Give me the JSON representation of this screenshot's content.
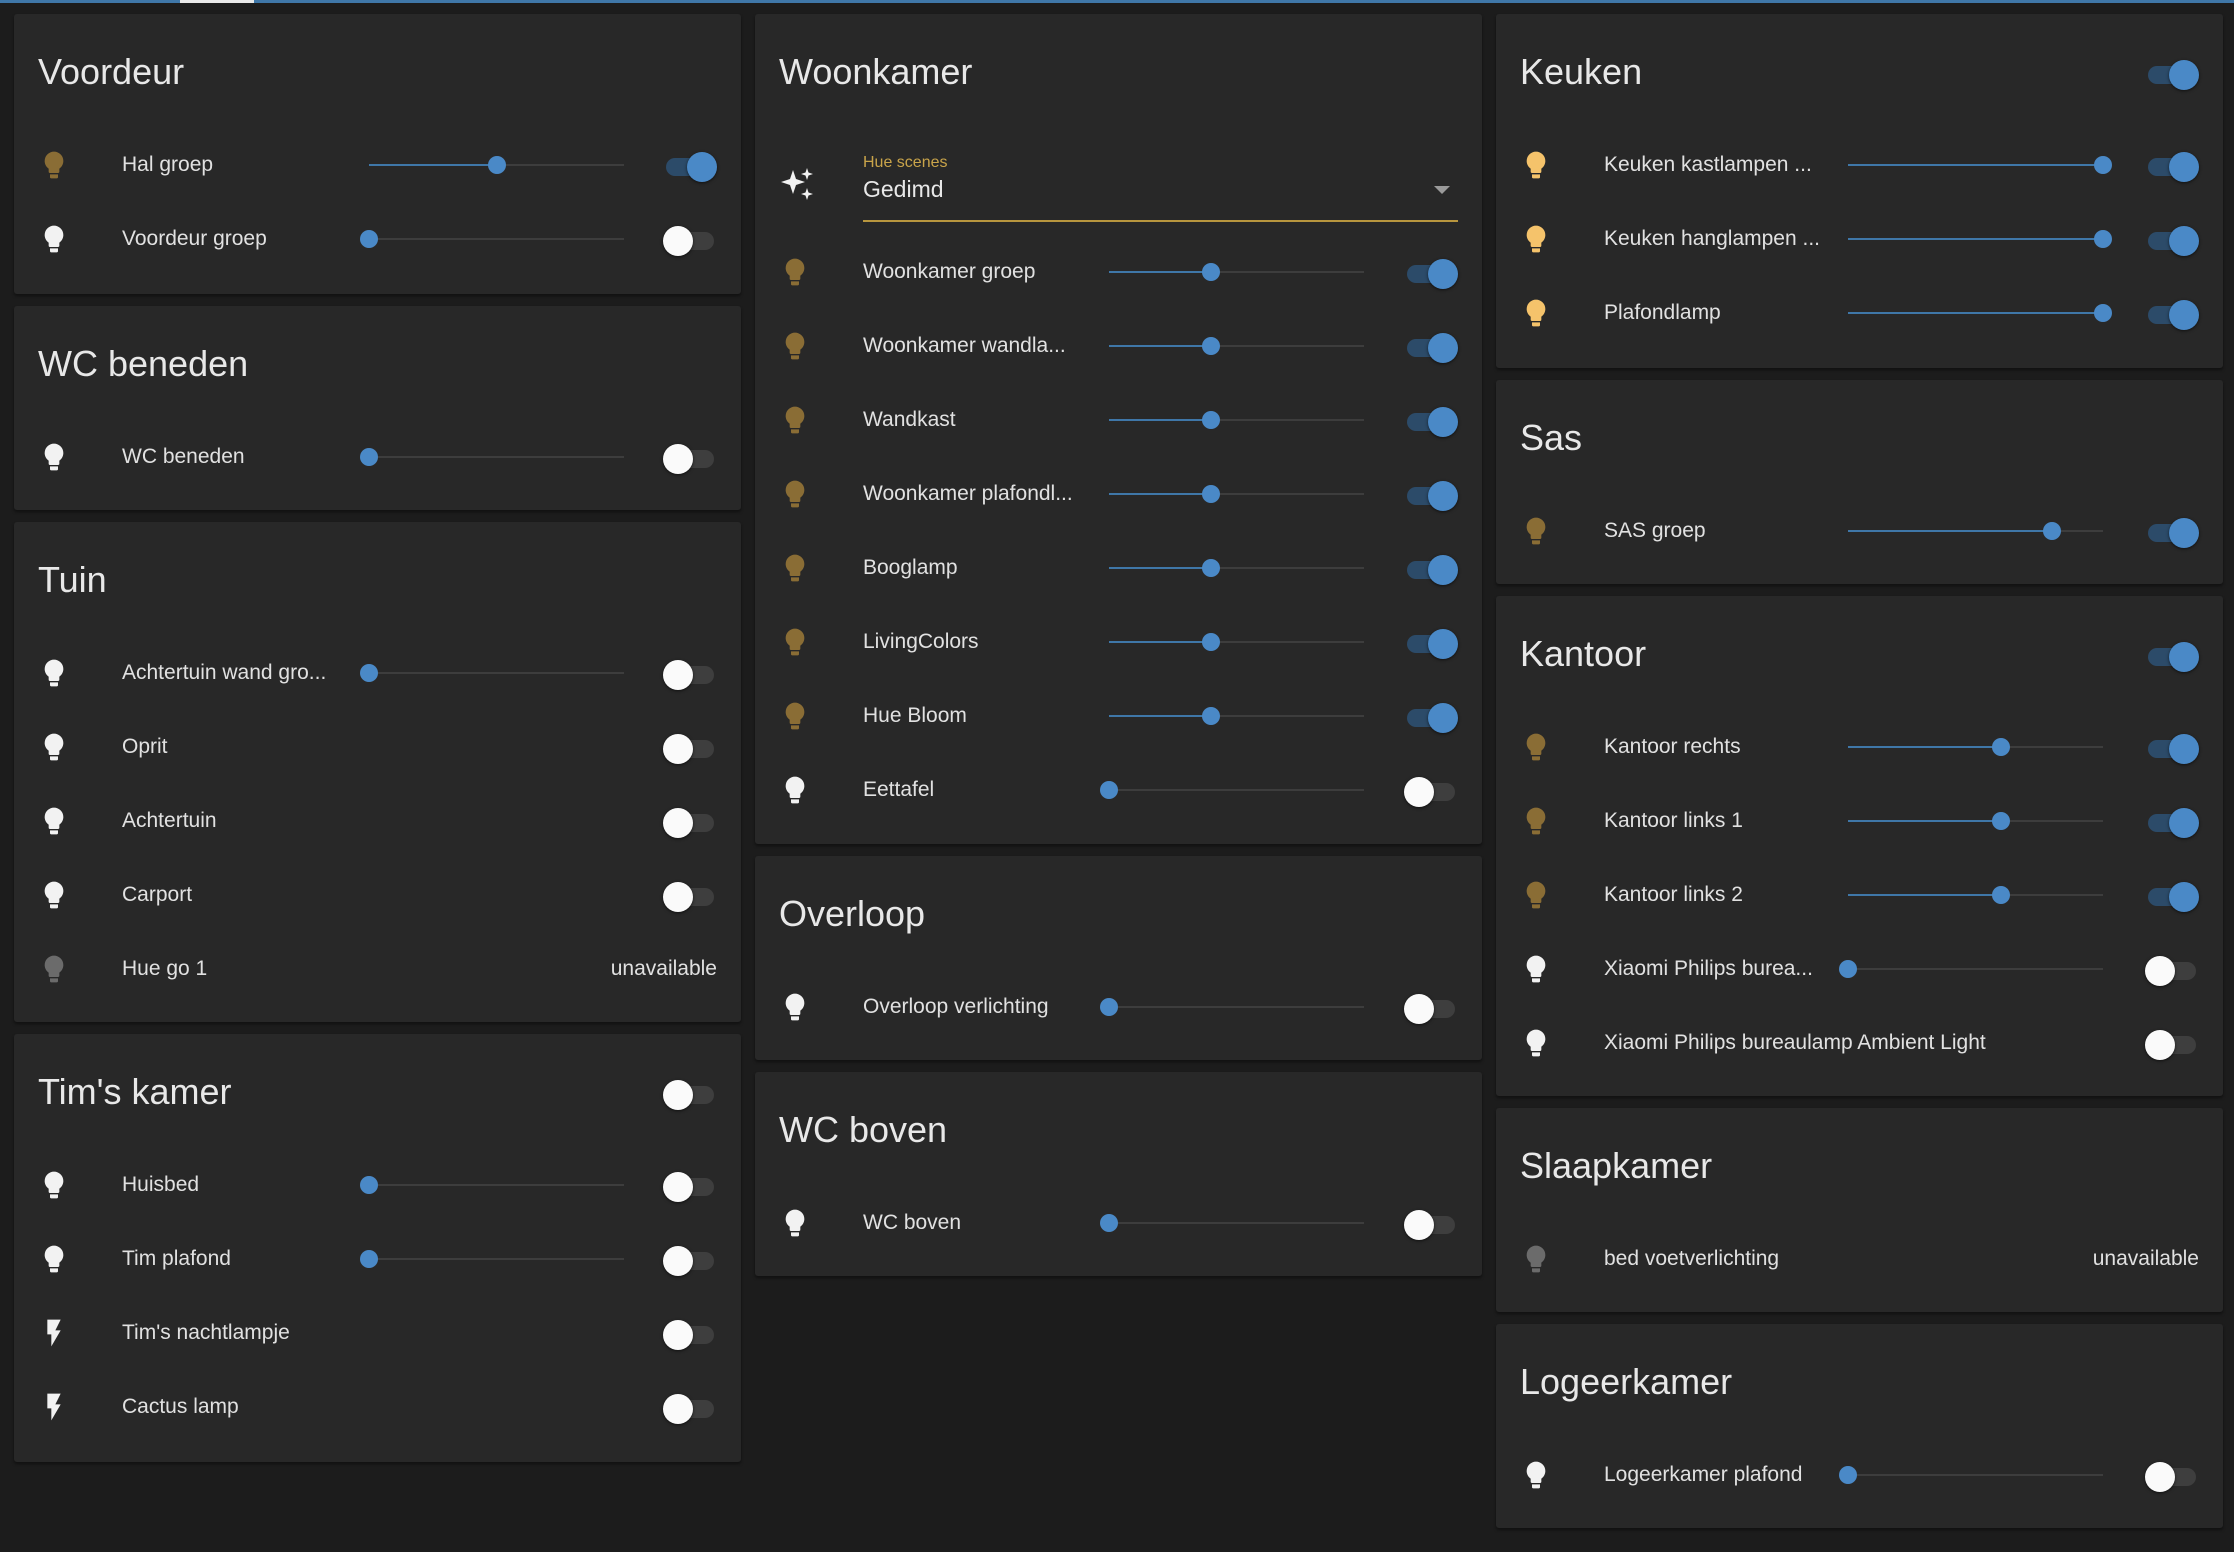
{
  "colors": {
    "background": "#1c1c1c",
    "card": "#282828",
    "accent_blue": "#4a89c7",
    "bulb_on_dim": "#8a6d35",
    "bulb_on_bright": "#f5c36b",
    "bulb_off": "#f2f2f2",
    "bulb_unavailable": "#6b6b6b",
    "select_underline": "#b8963e"
  },
  "cards": {
    "voordeur": {
      "title": "Voordeur",
      "rows": [
        {
          "name": "Hal groep",
          "brightness": 0.5,
          "on": true,
          "icon": "lightbulb-icon"
        },
        {
          "name": "Voordeur groep",
          "brightness": 0.0,
          "on": false,
          "icon": "lightbulb-icon"
        }
      ]
    },
    "wc_beneden": {
      "title": "WC beneden",
      "rows": [
        {
          "name": "WC beneden",
          "brightness": 0.0,
          "on": false,
          "icon": "lightbulb-icon"
        }
      ]
    },
    "tuin": {
      "title": "Tuin",
      "rows": [
        {
          "name": "Achtertuin wand gro...",
          "brightness": 0.0,
          "on": false,
          "icon": "lightbulb-icon"
        },
        {
          "name": "Oprit",
          "on": false,
          "icon": "lightbulb-icon"
        },
        {
          "name": "Achtertuin",
          "on": false,
          "icon": "lightbulb-icon"
        },
        {
          "name": "Carport",
          "on": false,
          "icon": "lightbulb-icon"
        },
        {
          "name": "Hue go 1",
          "status": "unavailable",
          "icon": "lightbulb-icon"
        }
      ]
    },
    "tims_kamer": {
      "title": "Tim's kamer",
      "toggle_on": false,
      "rows": [
        {
          "name": "Huisbed",
          "brightness": 0.0,
          "on": false,
          "icon": "lightbulb-icon"
        },
        {
          "name": "Tim plafond",
          "brightness": 0.0,
          "on": false,
          "icon": "lightbulb-icon"
        },
        {
          "name": "Tim's nachtlampje",
          "on": false,
          "icon": "flash-icon"
        },
        {
          "name": "Cactus lamp",
          "on": false,
          "icon": "flash-icon"
        }
      ]
    },
    "woonkamer": {
      "title": "Woonkamer",
      "scene_label": "Hue scenes",
      "scene_value": "Gedimd",
      "rows": [
        {
          "name": "Woonkamer groep",
          "brightness": 0.4,
          "on": true,
          "icon": "lightbulb-icon"
        },
        {
          "name": "Woonkamer wandla...",
          "brightness": 0.4,
          "on": true,
          "icon": "lightbulb-icon"
        },
        {
          "name": "Wandkast",
          "brightness": 0.4,
          "on": true,
          "icon": "lightbulb-icon"
        },
        {
          "name": "Woonkamer plafondl...",
          "brightness": 0.4,
          "on": true,
          "icon": "lightbulb-icon"
        },
        {
          "name": "Booglamp",
          "brightness": 0.4,
          "on": true,
          "icon": "lightbulb-icon"
        },
        {
          "name": "LivingColors",
          "brightness": 0.4,
          "on": true,
          "icon": "lightbulb-icon"
        },
        {
          "name": "Hue Bloom",
          "brightness": 0.4,
          "on": true,
          "icon": "lightbulb-icon"
        },
        {
          "name": "Eettafel",
          "brightness": 0.0,
          "on": false,
          "icon": "lightbulb-icon"
        }
      ]
    },
    "overloop": {
      "title": "Overloop",
      "rows": [
        {
          "name": "Overloop verlichting",
          "brightness": 0.0,
          "on": false,
          "icon": "lightbulb-icon"
        }
      ]
    },
    "wc_boven": {
      "title": "WC boven",
      "rows": [
        {
          "name": "WC boven",
          "brightness": 0.0,
          "on": false,
          "icon": "lightbulb-icon"
        }
      ]
    },
    "keuken": {
      "title": "Keuken",
      "toggle_on": true,
      "rows": [
        {
          "name": "Keuken kastlampen ...",
          "brightness": 1.0,
          "on": true,
          "icon": "lightbulb-icon"
        },
        {
          "name": "Keuken hanglampen ...",
          "brightness": 1.0,
          "on": true,
          "icon": "lightbulb-icon"
        },
        {
          "name": "Plafondlamp",
          "brightness": 1.0,
          "on": true,
          "icon": "lightbulb-icon"
        }
      ]
    },
    "sas": {
      "title": "Sas",
      "rows": [
        {
          "name": "SAS groep",
          "brightness": 0.8,
          "on": true,
          "icon": "lightbulb-icon"
        }
      ]
    },
    "kantoor": {
      "title": "Kantoor",
      "toggle_on": true,
      "rows": [
        {
          "name": "Kantoor rechts",
          "brightness": 0.6,
          "on": true,
          "icon": "lightbulb-icon"
        },
        {
          "name": "Kantoor links 1",
          "brightness": 0.6,
          "on": true,
          "icon": "lightbulb-icon"
        },
        {
          "name": "Kantoor links 2",
          "brightness": 0.6,
          "on": true,
          "icon": "lightbulb-icon"
        },
        {
          "name": "Xiaomi Philips burea...",
          "brightness": 0.0,
          "on": false,
          "icon": "lightbulb-icon"
        },
        {
          "name": "Xiaomi Philips bureaulamp Ambient Light",
          "on": false,
          "icon": "lightbulb-icon"
        }
      ]
    },
    "slaapkamer": {
      "title": "Slaapkamer",
      "rows": [
        {
          "name": "bed voetverlichting",
          "status": "unavailable",
          "icon": "lightbulb-icon"
        }
      ]
    },
    "logeerkamer": {
      "title": "Logeerkamer",
      "rows": [
        {
          "name": "Logeerkamer plafond",
          "brightness": 0.0,
          "on": false,
          "icon": "lightbulb-icon"
        }
      ]
    }
  }
}
